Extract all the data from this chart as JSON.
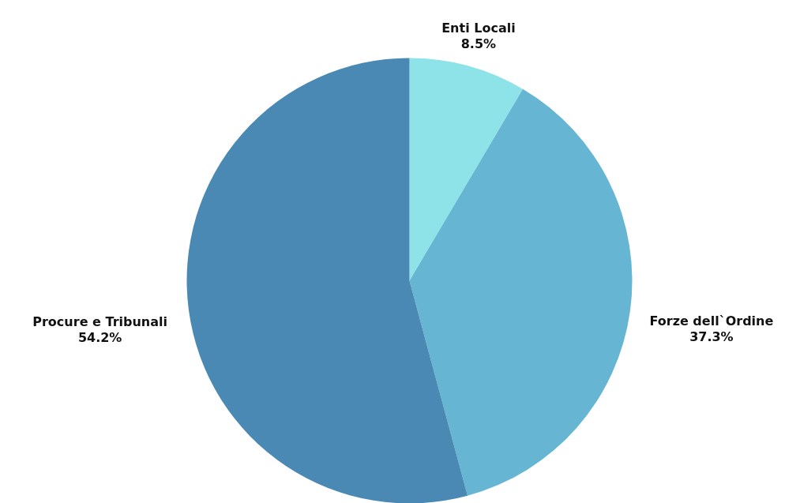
{
  "chart_data": {
    "type": "pie",
    "categories": [
      "Enti Locali",
      "Forze dell`Ordine",
      "Procure e Tribunali"
    ],
    "values": [
      8.5,
      37.3,
      54.2
    ],
    "colors": [
      "#8ee3e8",
      "#66b5d3",
      "#4a89b3"
    ],
    "value_labels": [
      "8.5%",
      "37.3%",
      "54.2%"
    ],
    "legend": false
  }
}
